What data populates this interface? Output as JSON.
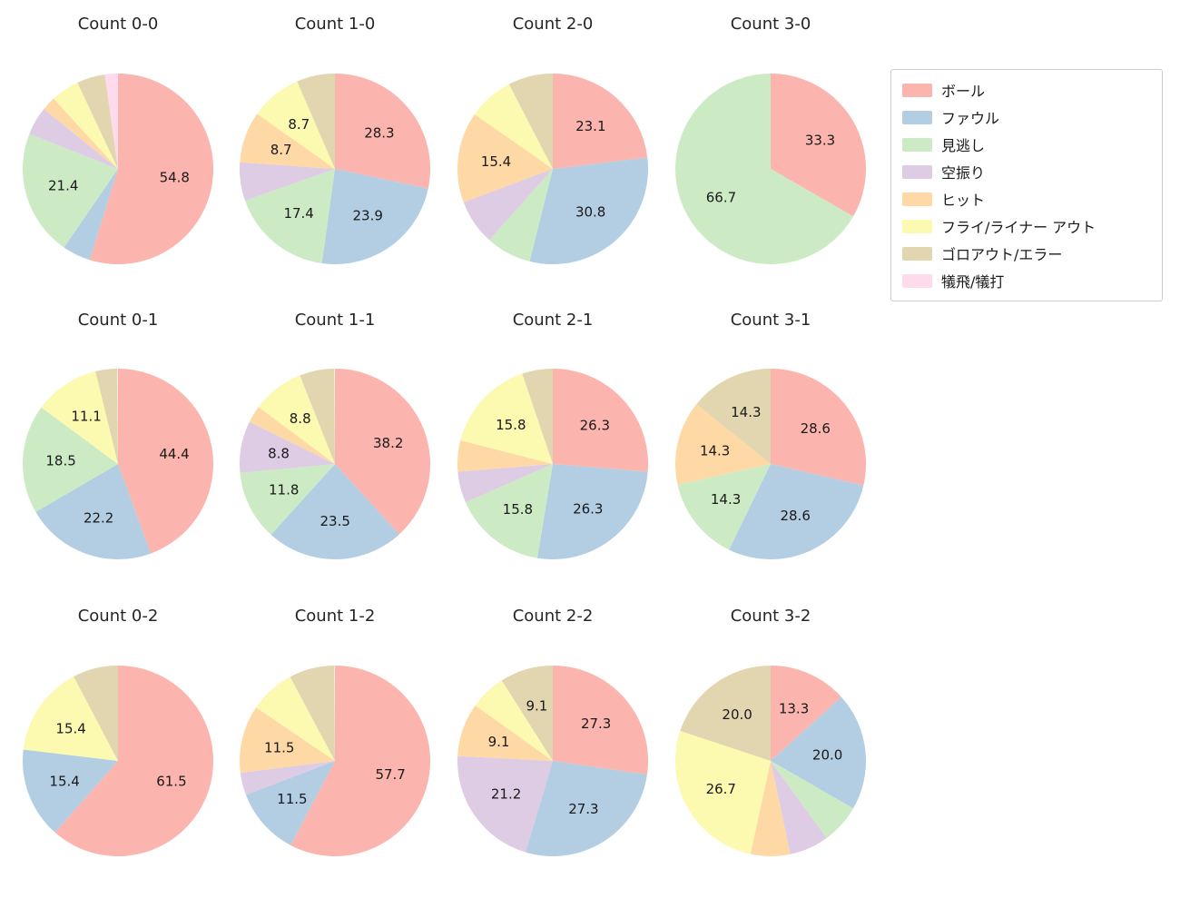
{
  "figure": {
    "background": "#ffffff"
  },
  "legend": {
    "items": [
      {
        "label": "ボール",
        "color": "#fbb4ae"
      },
      {
        "label": "ファウル",
        "color": "#b3cde3"
      },
      {
        "label": "見逃し",
        "color": "#ccebc5"
      },
      {
        "label": "空振り",
        "color": "#decbe4"
      },
      {
        "label": "ヒット",
        "color": "#fed9a6"
      },
      {
        "label": "フライ/ライナー アウト",
        "color": "#fcf9b0"
      },
      {
        "label": "ゴロアウト/エラー",
        "color": "#e2d6b1"
      },
      {
        "label": "犠飛/犠打",
        "color": "#fddaec"
      }
    ]
  },
  "chart_data": [
    {
      "type": "pie",
      "title": "Count 0-0",
      "slices": [
        {
          "category": "ボール",
          "category_index": 0,
          "value": 54.8,
          "label": "54.8"
        },
        {
          "category": "ファウル",
          "category_index": 1,
          "value": 4.8,
          "label": ""
        },
        {
          "category": "見逃し",
          "category_index": 2,
          "value": 21.4,
          "label": "21.4"
        },
        {
          "category": "空振り",
          "category_index": 3,
          "value": 4.8,
          "label": ""
        },
        {
          "category": "ヒット",
          "category_index": 4,
          "value": 2.4,
          "label": ""
        },
        {
          "category": "フライ/ライナー アウト",
          "category_index": 5,
          "value": 4.8,
          "label": ""
        },
        {
          "category": "ゴロアウト/エラー",
          "category_index": 6,
          "value": 4.8,
          "label": ""
        },
        {
          "category": "犠飛/犠打",
          "category_index": 7,
          "value": 2.4,
          "label": ""
        }
      ]
    },
    {
      "type": "pie",
      "title": "Count 1-0",
      "slices": [
        {
          "category": "ボール",
          "category_index": 0,
          "value": 28.3,
          "label": "28.3"
        },
        {
          "category": "ファウル",
          "category_index": 1,
          "value": 23.9,
          "label": "23.9"
        },
        {
          "category": "見逃し",
          "category_index": 2,
          "value": 17.4,
          "label": "17.4"
        },
        {
          "category": "空振り",
          "category_index": 3,
          "value": 6.5,
          "label": ""
        },
        {
          "category": "ヒット",
          "category_index": 4,
          "value": 8.7,
          "label": "8.7"
        },
        {
          "category": "フライ/ライナー アウト",
          "category_index": 5,
          "value": 8.7,
          "label": "8.7"
        },
        {
          "category": "ゴロアウト/エラー",
          "category_index": 6,
          "value": 6.5,
          "label": ""
        }
      ]
    },
    {
      "type": "pie",
      "title": "Count 2-0",
      "slices": [
        {
          "category": "ボール",
          "category_index": 0,
          "value": 23.1,
          "label": "23.1"
        },
        {
          "category": "ファウル",
          "category_index": 1,
          "value": 30.8,
          "label": "30.8"
        },
        {
          "category": "見逃し",
          "category_index": 2,
          "value": 7.7,
          "label": ""
        },
        {
          "category": "空振り",
          "category_index": 3,
          "value": 7.7,
          "label": ""
        },
        {
          "category": "ヒット",
          "category_index": 4,
          "value": 15.4,
          "label": "15.4"
        },
        {
          "category": "フライ/ライナー アウト",
          "category_index": 5,
          "value": 7.7,
          "label": ""
        },
        {
          "category": "ゴロアウト/エラー",
          "category_index": 6,
          "value": 7.7,
          "label": ""
        }
      ]
    },
    {
      "type": "pie",
      "title": "Count 3-0",
      "slices": [
        {
          "category": "ボール",
          "category_index": 0,
          "value": 33.3,
          "label": "33.3"
        },
        {
          "category": "見逃し",
          "category_index": 2,
          "value": 66.7,
          "label": "66.7"
        }
      ]
    },
    {
      "type": "pie",
      "title": "Count 0-1",
      "slices": [
        {
          "category": "ボール",
          "category_index": 0,
          "value": 44.4,
          "label": "44.4"
        },
        {
          "category": "ファウル",
          "category_index": 1,
          "value": 22.2,
          "label": "22.2"
        },
        {
          "category": "見逃し",
          "category_index": 2,
          "value": 18.5,
          "label": "18.5"
        },
        {
          "category": "フライ/ライナー アウト",
          "category_index": 5,
          "value": 11.1,
          "label": "11.1"
        },
        {
          "category": "ゴロアウト/エラー",
          "category_index": 6,
          "value": 3.7,
          "label": ""
        }
      ]
    },
    {
      "type": "pie",
      "title": "Count 1-1",
      "slices": [
        {
          "category": "ボール",
          "category_index": 0,
          "value": 38.2,
          "label": "38.2"
        },
        {
          "category": "ファウル",
          "category_index": 1,
          "value": 23.5,
          "label": "23.5"
        },
        {
          "category": "見逃し",
          "category_index": 2,
          "value": 11.8,
          "label": "11.8"
        },
        {
          "category": "空振り",
          "category_index": 3,
          "value": 8.8,
          "label": "8.8"
        },
        {
          "category": "ヒット",
          "category_index": 4,
          "value": 2.9,
          "label": ""
        },
        {
          "category": "フライ/ライナー アウト",
          "category_index": 5,
          "value": 8.8,
          "label": "8.8"
        },
        {
          "category": "ゴロアウト/エラー",
          "category_index": 6,
          "value": 5.9,
          "label": ""
        }
      ]
    },
    {
      "type": "pie",
      "title": "Count 2-1",
      "slices": [
        {
          "category": "ボール",
          "category_index": 0,
          "value": 26.3,
          "label": "26.3"
        },
        {
          "category": "ファウル",
          "category_index": 1,
          "value": 26.3,
          "label": "26.3"
        },
        {
          "category": "見逃し",
          "category_index": 2,
          "value": 15.8,
          "label": "15.8"
        },
        {
          "category": "空振り",
          "category_index": 3,
          "value": 5.3,
          "label": ""
        },
        {
          "category": "ヒット",
          "category_index": 4,
          "value": 5.3,
          "label": ""
        },
        {
          "category": "フライ/ライナー アウト",
          "category_index": 5,
          "value": 15.8,
          "label": "15.8"
        },
        {
          "category": "ゴロアウト/エラー",
          "category_index": 6,
          "value": 5.3,
          "label": ""
        }
      ]
    },
    {
      "type": "pie",
      "title": "Count 3-1",
      "slices": [
        {
          "category": "ボール",
          "category_index": 0,
          "value": 28.6,
          "label": "28.6"
        },
        {
          "category": "ファウル",
          "category_index": 1,
          "value": 28.6,
          "label": "28.6"
        },
        {
          "category": "見逃し",
          "category_index": 2,
          "value": 14.3,
          "label": "14.3"
        },
        {
          "category": "ヒット",
          "category_index": 4,
          "value": 14.3,
          "label": "14.3"
        },
        {
          "category": "ゴロアウト/エラー",
          "category_index": 6,
          "value": 14.3,
          "label": "14.3"
        }
      ]
    },
    {
      "type": "pie",
      "title": "Count 0-2",
      "slices": [
        {
          "category": "ボール",
          "category_index": 0,
          "value": 61.5,
          "label": "61.5"
        },
        {
          "category": "ファウル",
          "category_index": 1,
          "value": 15.4,
          "label": "15.4"
        },
        {
          "category": "フライ/ライナー アウト",
          "category_index": 5,
          "value": 15.4,
          "label": "15.4"
        },
        {
          "category": "ゴロアウト/エラー",
          "category_index": 6,
          "value": 7.7,
          "label": ""
        }
      ]
    },
    {
      "type": "pie",
      "title": "Count 1-2",
      "slices": [
        {
          "category": "ボール",
          "category_index": 0,
          "value": 57.7,
          "label": "57.7"
        },
        {
          "category": "ファウル",
          "category_index": 1,
          "value": 11.5,
          "label": "11.5"
        },
        {
          "category": "空振り",
          "category_index": 3,
          "value": 3.8,
          "label": ""
        },
        {
          "category": "ヒット",
          "category_index": 4,
          "value": 11.5,
          "label": "11.5"
        },
        {
          "category": "フライ/ライナー アウト",
          "category_index": 5,
          "value": 7.7,
          "label": ""
        },
        {
          "category": "ゴロアウト/エラー",
          "category_index": 6,
          "value": 7.7,
          "label": ""
        }
      ]
    },
    {
      "type": "pie",
      "title": "Count 2-2",
      "slices": [
        {
          "category": "ボール",
          "category_index": 0,
          "value": 27.3,
          "label": "27.3"
        },
        {
          "category": "ファウル",
          "category_index": 1,
          "value": 27.3,
          "label": "27.3"
        },
        {
          "category": "空振り",
          "category_index": 3,
          "value": 21.2,
          "label": "21.2"
        },
        {
          "category": "ヒット",
          "category_index": 4,
          "value": 9.1,
          "label": "9.1"
        },
        {
          "category": "フライ/ライナー アウト",
          "category_index": 5,
          "value": 6.1,
          "label": ""
        },
        {
          "category": "ゴロアウト/エラー",
          "category_index": 6,
          "value": 9.1,
          "label": "9.1"
        }
      ]
    },
    {
      "type": "pie",
      "title": "Count 3-2",
      "slices": [
        {
          "category": "ボール",
          "category_index": 0,
          "value": 13.3,
          "label": "13.3"
        },
        {
          "category": "ファウル",
          "category_index": 1,
          "value": 20.0,
          "label": "20.0"
        },
        {
          "category": "見逃し",
          "category_index": 2,
          "value": 6.7,
          "label": ""
        },
        {
          "category": "空振り",
          "category_index": 3,
          "value": 6.7,
          "label": ""
        },
        {
          "category": "ヒット",
          "category_index": 4,
          "value": 6.7,
          "label": ""
        },
        {
          "category": "フライ/ライナー アウト",
          "category_index": 5,
          "value": 26.7,
          "label": "26.7"
        },
        {
          "category": "ゴロアウト/エラー",
          "category_index": 6,
          "value": 20.0,
          "label": "20.0"
        }
      ]
    }
  ]
}
